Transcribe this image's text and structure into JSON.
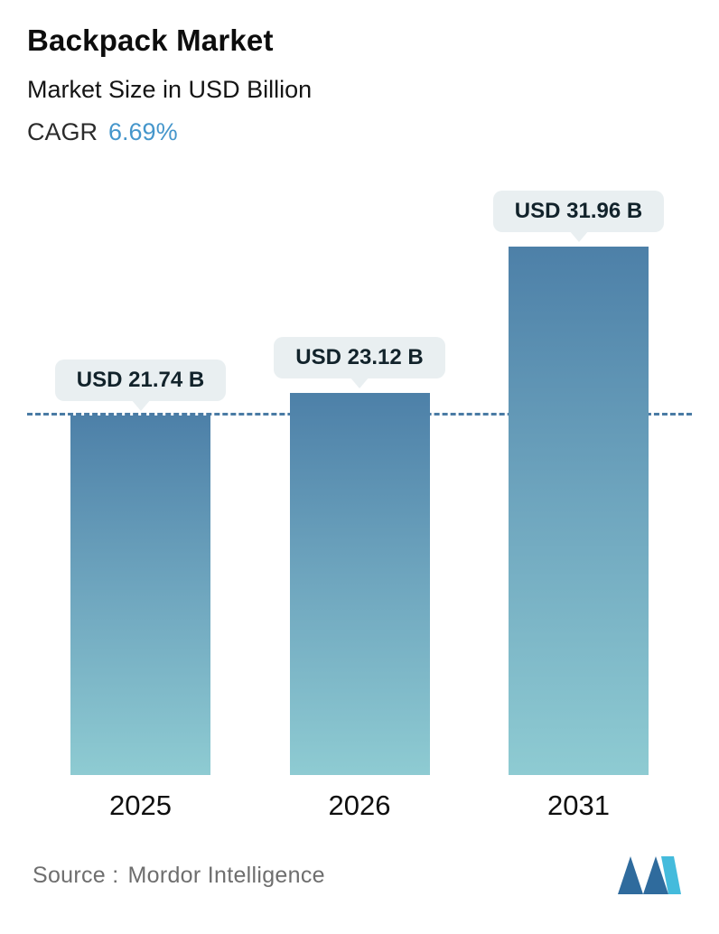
{
  "header": {
    "title": "Backpack Market",
    "subtitle": "Market Size in USD Billion",
    "cagr_label": "CAGR",
    "cagr_value": "6.69%"
  },
  "chart_data": {
    "type": "bar",
    "title": "Backpack Market",
    "subtitle": "Market Size in USD Billion",
    "cagr": "6.69%",
    "categories": [
      "2025",
      "2026",
      "2031"
    ],
    "values": [
      21.74,
      23.12,
      31.96
    ],
    "value_labels": [
      "USD 21.74 B",
      "USD 23.12 B",
      "USD 31.96 B"
    ],
    "unit": "USD Billion",
    "ylim": [
      0,
      32
    ],
    "grid": false,
    "reference_line": {
      "at_value": 21.74,
      "style": "dashed"
    },
    "colors": {
      "bar_gradient_top": "#4d80a8",
      "bar_gradient_bottom": "#8ecbd2",
      "label_pill_bg": "#e9eff1",
      "reference_line": "#4a7ba4",
      "cagr_accent": "#4596cb"
    }
  },
  "footer": {
    "source_label": "Source :",
    "source_name": "Mordor Intelligence",
    "logo": "mordor-intelligence-logo"
  }
}
